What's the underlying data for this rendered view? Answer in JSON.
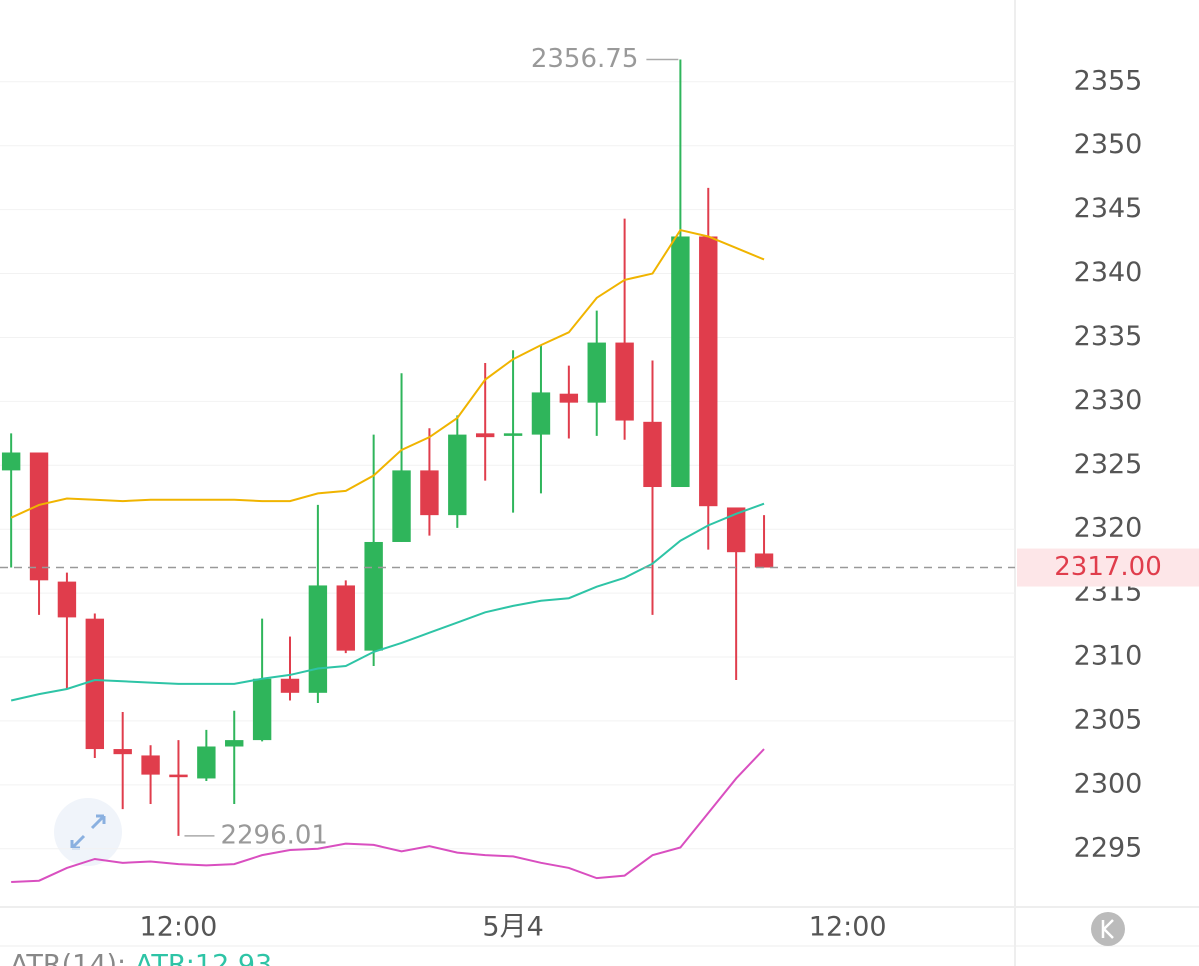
{
  "chart_data": {
    "type": "candlestick",
    "x": [
      0,
      1,
      2,
      3,
      4,
      5,
      6,
      7,
      8,
      9,
      10,
      11,
      12,
      13,
      14,
      15,
      16,
      17,
      18,
      19,
      20,
      21,
      22,
      23,
      24,
      25,
      26,
      27
    ],
    "open": [
      2324.6,
      2326.0,
      2315.9,
      2313.0,
      2302.8,
      2302.3,
      2300.8,
      2300.5,
      2303.0,
      2303.5,
      2308.3,
      2307.2,
      2315.6,
      2310.5,
      2319.0,
      2324.6,
      2321.1,
      2327.5,
      2327.3,
      2327.4,
      2330.6,
      2329.9,
      2334.6,
      2328.4,
      2323.3,
      2342.9,
      2321.7,
      2318.1
    ],
    "high": [
      2327.5,
      2326.0,
      2316.6,
      2313.4,
      2305.7,
      2303.1,
      2303.5,
      2304.3,
      2305.8,
      2313.0,
      2311.6,
      2321.9,
      2316.0,
      2327.4,
      2332.2,
      2327.9,
      2328.9,
      2333.0,
      2334.0,
      2334.4,
      2332.8,
      2337.1,
      2344.3,
      2333.2,
      2356.75,
      2346.7,
      2321.7,
      2321.1
    ],
    "low": [
      2317.0,
      2313.3,
      2307.5,
      2302.1,
      2298.1,
      2298.5,
      2296.01,
      2300.3,
      2298.5,
      2303.4,
      2306.6,
      2306.4,
      2310.3,
      2309.3,
      2319.0,
      2319.5,
      2320.1,
      2323.8,
      2321.3,
      2322.8,
      2327.1,
      2327.3,
      2327.0,
      2313.3,
      2323.3,
      2318.4,
      2308.2,
      2317.0
    ],
    "close": [
      2326.0,
      2316.0,
      2313.1,
      2302.8,
      2302.4,
      2300.8,
      2300.6,
      2303.0,
      2303.5,
      2308.3,
      2307.2,
      2315.6,
      2310.5,
      2319.0,
      2324.6,
      2321.1,
      2327.4,
      2327.2,
      2327.5,
      2330.7,
      2329.9,
      2334.6,
      2328.5,
      2323.3,
      2342.9,
      2321.8,
      2318.2,
      2317.0
    ],
    "up_color": "#2fb55b",
    "down_color": "#e03d4c",
    "series": [
      {
        "color": "#f0b400",
        "values": [
          2320.9,
          2321.9,
          2322.4,
          2322.3,
          2322.2,
          2322.3,
          2322.3,
          2322.3,
          2322.3,
          2322.2,
          2322.2,
          2322.8,
          2323.0,
          2324.2,
          2326.2,
          2327.2,
          2328.7,
          2331.7,
          2333.3,
          2334.4,
          2335.4,
          2338.1,
          2339.5,
          2340.0,
          2343.4,
          2342.9,
          2342.0,
          2341.1
        ]
      },
      {
        "color": "#2ec4a6",
        "values": [
          2306.6,
          2307.1,
          2307.5,
          2308.2,
          2308.1,
          2308.0,
          2307.9,
          2307.9,
          2307.9,
          2308.3,
          2308.6,
          2309.1,
          2309.3,
          2310.4,
          2311.1,
          2311.9,
          2312.7,
          2313.5,
          2314.0,
          2314.4,
          2314.6,
          2315.5,
          2316.2,
          2317.3,
          2319.1,
          2320.3,
          2321.2,
          2322.0
        ]
      },
      {
        "color": "#d94fc0",
        "values": [
          2292.4,
          2292.5,
          2293.5,
          2294.2,
          2293.9,
          2294.0,
          2293.8,
          2293.7,
          2293.8,
          2294.5,
          2294.9,
          2295.0,
          2295.4,
          2295.3,
          2294.8,
          2295.2,
          2294.7,
          2294.5,
          2294.4,
          2293.9,
          2293.5,
          2292.7,
          2292.9,
          2294.5,
          2295.1,
          2297.8,
          2300.5,
          2302.8
        ]
      }
    ],
    "xlim": [
      -0.4,
      36
    ],
    "xticks": [
      {
        "value": 6,
        "label": "12:00"
      },
      {
        "value": 18,
        "label": "5月4"
      },
      {
        "value": 30,
        "label": "12:00"
      }
    ],
    "ylim": [
      2290.6,
      2361.4
    ],
    "yticks": [
      2295,
      2300,
      2305,
      2310,
      2315,
      2320,
      2325,
      2330,
      2335,
      2340,
      2345,
      2350,
      2355
    ],
    "grid": true,
    "high_label": 2356.75,
    "low_label": 2296.01,
    "last_price": {
      "value": 2317,
      "label": "2317.00"
    },
    "indicator": {
      "name": "ATR(14):",
      "value_label": "ATR:12.93"
    }
  }
}
